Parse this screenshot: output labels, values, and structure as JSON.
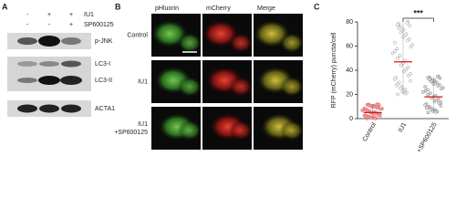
{
  "panel_a": {
    "label": "A",
    "treatments": [
      {
        "name": "IU1",
        "signs": [
          "-",
          "+",
          "+"
        ]
      },
      {
        "name": "SP600125",
        "signs": [
          "-",
          "-",
          "+"
        ]
      }
    ],
    "bands": [
      "p-JNK",
      "LC3-I",
      "LC3-II",
      "ACTA1"
    ]
  },
  "panel_b": {
    "label": "B",
    "columns": [
      "pHluorin",
      "mCherry",
      "Merge"
    ],
    "rows": [
      [
        "Control"
      ],
      [
        "IU1"
      ],
      [
        "IU1",
        "+SP600125"
      ]
    ]
  },
  "panel_c": {
    "label": "C",
    "y_label": "RFP (mCherry) puncta/cell",
    "ylim": [
      0,
      80
    ],
    "yticks": [
      0,
      20,
      40,
      60,
      80
    ],
    "categories": [
      "Control",
      "IU1",
      "IU1+SP600125"
    ],
    "means": [
      5,
      47,
      18
    ],
    "ranges": [
      [
        0,
        12
      ],
      [
        20,
        80
      ],
      [
        5,
        35
      ]
    ],
    "significance": "***"
  }
}
